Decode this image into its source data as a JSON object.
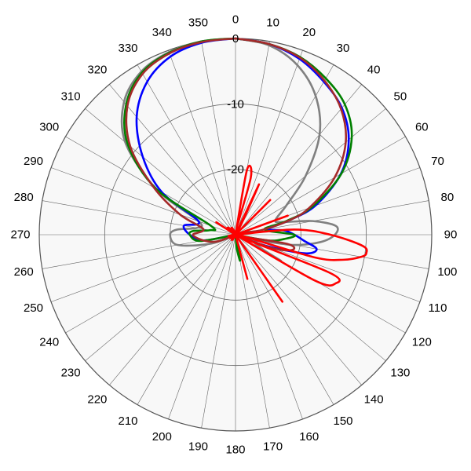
{
  "chart_data": {
    "type": "polar-line",
    "title": "",
    "angle_direction": "clockwise",
    "zero_angle_position": "top",
    "angle_tick_step_deg": 10,
    "angle_labels": [
      "0",
      "10",
      "20",
      "30",
      "40",
      "50",
      "60",
      "70",
      "80",
      "90",
      "100",
      "110",
      "120",
      "130",
      "140",
      "150",
      "160",
      "170",
      "180",
      "190",
      "200",
      "210",
      "220",
      "230",
      "240",
      "250",
      "260",
      "270",
      "280",
      "290",
      "300",
      "310",
      "320",
      "330",
      "340",
      "350"
    ],
    "radial_range": [
      -30,
      0
    ],
    "radial_ticks": [
      {
        "value": 0,
        "label": "0"
      },
      {
        "value": -10,
        "label": "-10"
      },
      {
        "value": -20,
        "label": "-20"
      }
    ],
    "grid": true,
    "colors": {
      "background": "#ffffff",
      "plot_fill": "#f8f8f8",
      "grid": "#666666",
      "outer_ring": "#555555"
    },
    "series": [
      {
        "color": "#808080",
        "points": [
          [
            0,
            0
          ],
          [
            10,
            -0.6
          ],
          [
            20,
            -2.4
          ],
          [
            30,
            -5.5
          ],
          [
            40,
            -10
          ],
          [
            50,
            -16
          ],
          [
            60,
            -21
          ],
          [
            70,
            -23.5
          ],
          [
            75,
            -22.5
          ],
          [
            80,
            -18
          ],
          [
            85,
            -14.6
          ],
          [
            90,
            -14.8
          ],
          [
            95,
            -17
          ],
          [
            100,
            -21
          ],
          [
            110,
            -27
          ],
          [
            120,
            -22
          ],
          [
            130,
            -30
          ],
          [
            170,
            -30
          ],
          [
            180,
            -30
          ],
          [
            190,
            -30
          ],
          [
            250,
            -26
          ],
          [
            260,
            -21
          ],
          [
            270,
            -20
          ],
          [
            275,
            -21
          ],
          [
            280,
            -24
          ],
          [
            290,
            -24
          ],
          [
            300,
            -16
          ],
          [
            310,
            -8
          ],
          [
            320,
            -3.5
          ],
          [
            330,
            -1.2
          ],
          [
            340,
            -0.3
          ],
          [
            350,
            0
          ],
          [
            360,
            0
          ]
        ]
      },
      {
        "color": "#0000ff",
        "points": [
          [
            0,
            0
          ],
          [
            10,
            -0.4
          ],
          [
            20,
            -1.4
          ],
          [
            30,
            -3
          ],
          [
            40,
            -4.7
          ],
          [
            50,
            -7.4
          ],
          [
            60,
            -11.4
          ],
          [
            70,
            -17
          ],
          [
            75,
            -21.5
          ],
          [
            80,
            -25
          ],
          [
            85,
            -22.5
          ],
          [
            90,
            -21
          ],
          [
            95,
            -19.5
          ],
          [
            100,
            -17.4
          ],
          [
            105,
            -19
          ],
          [
            110,
            -25
          ],
          [
            120,
            -30
          ],
          [
            180,
            -30
          ],
          [
            240,
            -30
          ],
          [
            260,
            -25
          ],
          [
            270,
            -23
          ],
          [
            280,
            -22
          ],
          [
            290,
            -24
          ],
          [
            300,
            -17
          ],
          [
            310,
            -11.5
          ],
          [
            320,
            -6.5
          ],
          [
            330,
            -3
          ],
          [
            340,
            -1
          ],
          [
            350,
            -0.2
          ],
          [
            360,
            0
          ]
        ]
      },
      {
        "color": "#008000",
        "points": [
          [
            0,
            0
          ],
          [
            10,
            -0.4
          ],
          [
            20,
            -1.1
          ],
          [
            30,
            -2.4
          ],
          [
            40,
            -4
          ],
          [
            50,
            -6.8
          ],
          [
            60,
            -11.3
          ],
          [
            70,
            -17.5
          ],
          [
            75,
            -22
          ],
          [
            80,
            -25.5
          ],
          [
            90,
            -21
          ],
          [
            95,
            -22.5
          ],
          [
            100,
            -25
          ],
          [
            110,
            -30
          ],
          [
            160,
            -30
          ],
          [
            170,
            -26
          ],
          [
            175,
            -28
          ],
          [
            180,
            -30
          ],
          [
            240,
            -30
          ],
          [
            260,
            -24.5
          ],
          [
            270,
            -23
          ],
          [
            275,
            -23.5
          ],
          [
            280,
            -26
          ],
          [
            290,
            -26
          ],
          [
            300,
            -16
          ],
          [
            310,
            -8.5
          ],
          [
            320,
            -4
          ],
          [
            330,
            -1.4
          ],
          [
            340,
            -0.4
          ],
          [
            350,
            0
          ],
          [
            360,
            0
          ]
        ]
      },
      {
        "color": "#a52a2a",
        "points": [
          [
            0,
            0
          ],
          [
            10,
            -0.4
          ],
          [
            20,
            -1.2
          ],
          [
            30,
            -2.8
          ],
          [
            40,
            -4.9
          ],
          [
            50,
            -8
          ],
          [
            60,
            -12.5
          ],
          [
            70,
            -18
          ],
          [
            75,
            -21.5
          ],
          [
            80,
            -26
          ],
          [
            90,
            -30
          ],
          [
            100,
            -22
          ],
          [
            105,
            -21
          ],
          [
            110,
            -24
          ],
          [
            120,
            -30
          ],
          [
            240,
            -30
          ],
          [
            250,
            -27
          ],
          [
            260,
            -25
          ],
          [
            270,
            -23.5
          ],
          [
            280,
            -25
          ],
          [
            290,
            -21
          ],
          [
            300,
            -15.6
          ],
          [
            310,
            -9
          ],
          [
            320,
            -4.3
          ],
          [
            330,
            -1.6
          ],
          [
            340,
            -0.5
          ],
          [
            350,
            -0.1
          ],
          [
            360,
            0
          ]
        ]
      },
      {
        "color": "#ff0000",
        "points": [
          [
            0,
            -30
          ],
          [
            10,
            -20
          ],
          [
            15,
            -21
          ],
          [
            20,
            -30
          ],
          [
            25,
            -21.5
          ],
          [
            30,
            -30
          ],
          [
            40,
            -30
          ],
          [
            45,
            -22.5
          ],
          [
            50,
            -30
          ],
          [
            65,
            -30
          ],
          [
            70,
            -21.5
          ],
          [
            75,
            -30
          ],
          [
            80,
            -30
          ],
          [
            85,
            -21
          ],
          [
            90,
            -15.5
          ],
          [
            95,
            -10.5
          ],
          [
            98,
            -9.8
          ],
          [
            100,
            -10.5
          ],
          [
            103,
            -13
          ],
          [
            106,
            -17.5
          ],
          [
            110,
            -30
          ],
          [
            112,
            -14.5
          ],
          [
            116,
            -13
          ],
          [
            120,
            -16
          ],
          [
            125,
            -30
          ],
          [
            140,
            -30
          ],
          [
            145,
            -17.5
          ],
          [
            150,
            -30
          ],
          [
            160,
            -30
          ],
          [
            165,
            -23
          ],
          [
            170,
            -30
          ],
          [
            300,
            -30
          ],
          [
            303,
            -26.5
          ],
          [
            306,
            -30
          ],
          [
            360,
            -30
          ]
        ]
      }
    ]
  }
}
